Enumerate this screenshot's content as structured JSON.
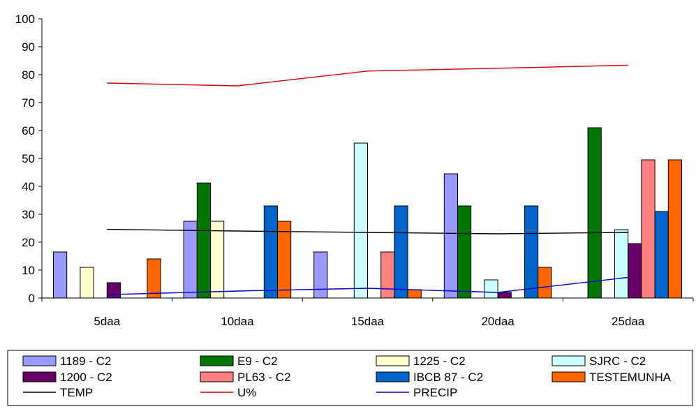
{
  "chart_data": {
    "type": "bar",
    "categories": [
      "5daa",
      "10daa",
      "15daa",
      "20daa",
      "25daa"
    ],
    "ylim": [
      0,
      100
    ],
    "yticks": [
      0,
      10,
      20,
      30,
      40,
      50,
      60,
      70,
      80,
      90,
      100
    ],
    "grid": false,
    "legend_position": "bottom",
    "series": [
      {
        "name": "1189 - C2",
        "color": "#9999ff",
        "values": [
          16.5,
          27.5,
          16.5,
          44.5,
          0
        ]
      },
      {
        "name": "E9 - C2",
        "color": "#007700",
        "values": [
          0,
          41.2,
          0,
          33,
          61
        ]
      },
      {
        "name": "1225 - C2",
        "color": "#ffffcc",
        "values": [
          11,
          27.5,
          0,
          0,
          0
        ]
      },
      {
        "name": "SJRC - C2",
        "color": "#ccffff",
        "values": [
          0,
          0,
          55.5,
          6.5,
          24.5
        ]
      },
      {
        "name": "1200 - C2",
        "color": "#660066",
        "values": [
          5.5,
          0,
          0,
          2,
          19.5
        ]
      },
      {
        "name": "PL63 - C2",
        "color": "#ff8080",
        "values": [
          0,
          0,
          16.5,
          0,
          49.5
        ]
      },
      {
        "name": "IBCB 87 - C2",
        "color": "#0066cc",
        "values": [
          0,
          33,
          33,
          33,
          31
        ]
      },
      {
        "name": "TESTEMUNHA",
        "color": "#ff6600",
        "values": [
          14,
          27.5,
          3,
          11,
          49.5
        ]
      }
    ],
    "lines": [
      {
        "name": "TEMP",
        "color": "#000000",
        "values": [
          24.6,
          24,
          23.5,
          23,
          23.5
        ]
      },
      {
        "name": "U%",
        "color": "#dd0000",
        "values": [
          77,
          76,
          81.3,
          82.3,
          83.4
        ]
      },
      {
        "name": "PRECIP",
        "color": "#0000cc",
        "values": [
          1.2,
          2.5,
          3.5,
          2,
          7.4
        ]
      }
    ]
  }
}
